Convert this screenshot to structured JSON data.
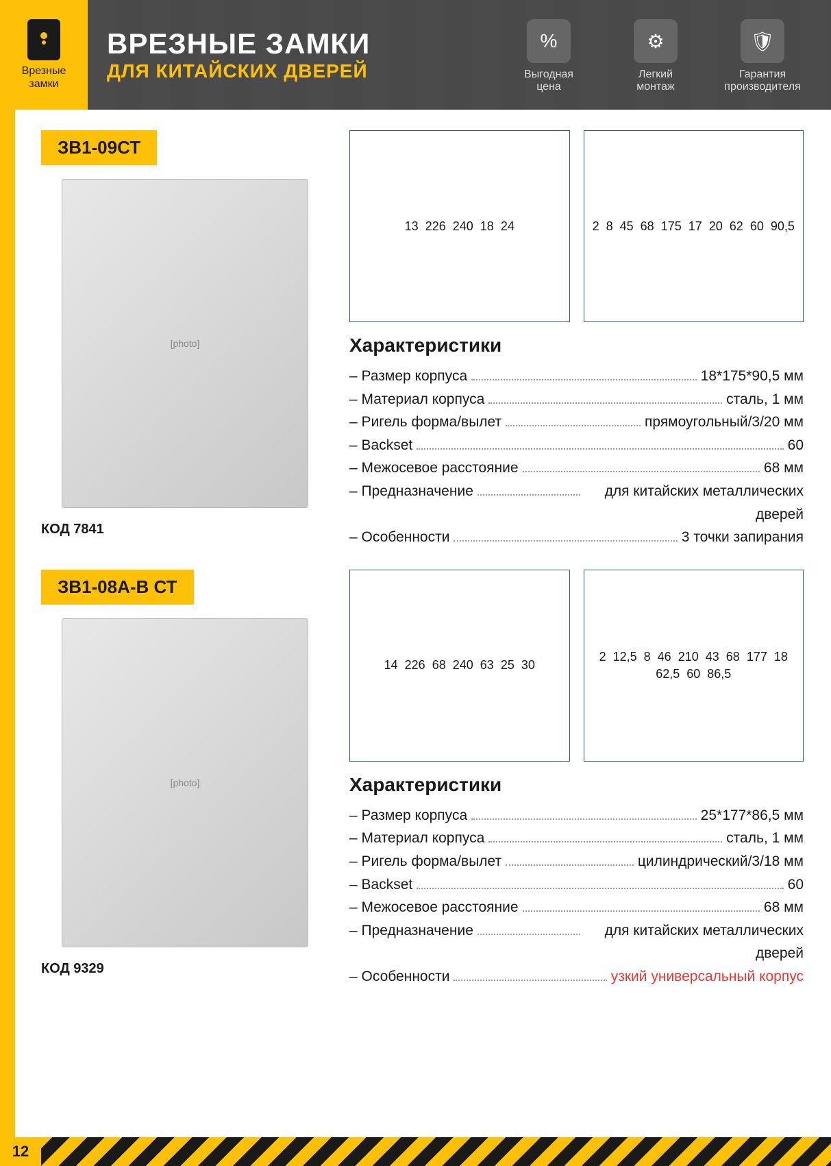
{
  "page_number": "12",
  "category": {
    "label_line1": "Врезные",
    "label_line2": "замки"
  },
  "header": {
    "title": "ВРЕЗНЫЕ ЗАМКИ",
    "subtitle": "ДЛЯ КИТАЙСКИХ ДВЕРЕЙ",
    "badges": [
      {
        "glyph": "%",
        "line1": "Выгодная",
        "line2": "цена"
      },
      {
        "glyph": "⚙",
        "line1": "Легкий",
        "line2": "монтаж"
      },
      {
        "glyph": "🛡",
        "line1": "Гарантия",
        "line2": "производителя"
      }
    ]
  },
  "colors": {
    "accent": "#ffc107",
    "dark": "#1a1a1a",
    "header_bg": "#4a4a4a",
    "diagram_stroke": "#2a5a8a",
    "highlight_red": "#e53935"
  },
  "products": [
    {
      "model": "ЗВ1-09СТ",
      "code_label": "КОД 7841",
      "diagrams": {
        "faceplate": {
          "dims": [
            "13",
            "226",
            "240",
            "18",
            "24"
          ]
        },
        "body": {
          "dims": [
            "2",
            "8",
            "45",
            "68",
            "175",
            "17",
            "20",
            "62",
            "60",
            "90,5"
          ]
        }
      },
      "specs_title": "Характеристики",
      "specs": [
        {
          "label": "Размер корпуса",
          "value": "18*175*90,5 мм"
        },
        {
          "label": "Материал корпуса",
          "value": "сталь, 1 мм"
        },
        {
          "label": "Ригель форма/вылет",
          "value": "прямоугольный/3/20 мм"
        },
        {
          "label": "Backset",
          "value": "60"
        },
        {
          "label": "Межосевое расстояние",
          "value": "68 мм"
        },
        {
          "label": "Предназначение",
          "value": "для китайских металлических дверей",
          "multi": true
        },
        {
          "label": "Особенности",
          "value": "3 точки запирания"
        }
      ]
    },
    {
      "model": "ЗВ1-08А-В СТ",
      "code_label": "КОД 9329",
      "diagrams": {
        "faceplate": {
          "dims": [
            "14",
            "226",
            "68",
            "240",
            "63",
            "25",
            "30"
          ]
        },
        "body": {
          "dims": [
            "2",
            "12,5",
            "8",
            "46",
            "210",
            "43",
            "68",
            "177",
            "18",
            "62,5",
            "60",
            "86,5"
          ]
        }
      },
      "specs_title": "Характеристики",
      "specs": [
        {
          "label": "Размер корпуса",
          "value": "25*177*86,5 мм"
        },
        {
          "label": "Материал корпуса",
          "value": "сталь, 1 мм"
        },
        {
          "label": "Ригель форма/вылет",
          "value": "цилиндрический/3/18 мм"
        },
        {
          "label": "Backset",
          "value": "60"
        },
        {
          "label": "Межосевое расстояние",
          "value": "68 мм"
        },
        {
          "label": "Предназначение",
          "value": "для китайских металлических дверей",
          "multi": true
        },
        {
          "label": "Особенности",
          "value": "узкий универсальный корпус",
          "red": true,
          "multi": true
        }
      ]
    }
  ]
}
